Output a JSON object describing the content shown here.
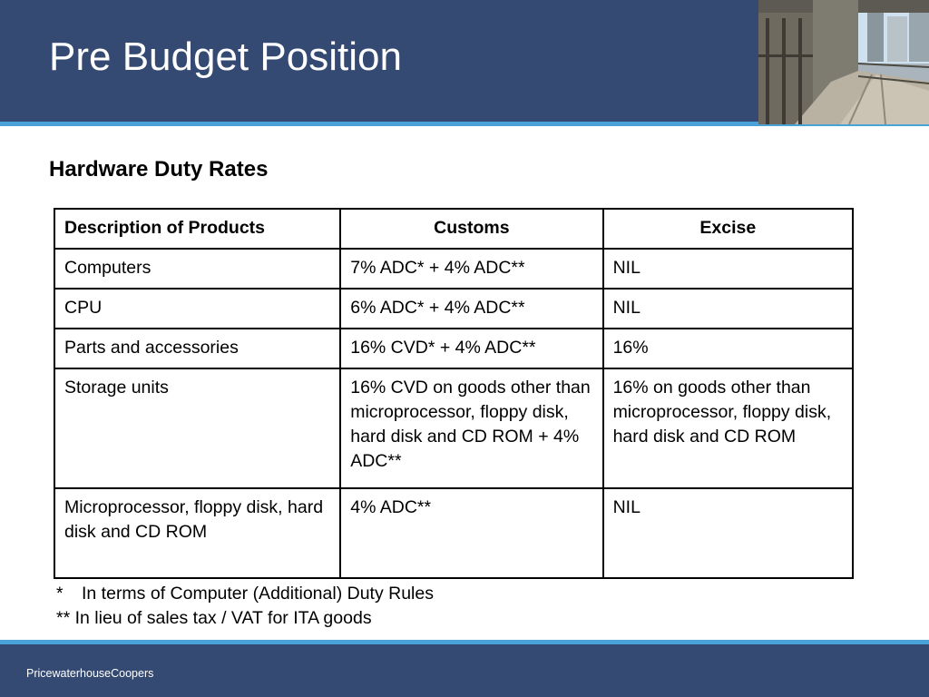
{
  "slide": {
    "title": "Pre Budget Position",
    "subtitle": "Hardware Duty Rates",
    "footer": "PricewaterhouseCoopers",
    "photo_icon": "walkway-photo",
    "colors": {
      "header_bg": "#354a72",
      "accent_rule": "#4aa3d8"
    }
  },
  "table": {
    "headers": [
      "Description of Products",
      "Customs",
      "Excise"
    ],
    "rows": [
      [
        "Computers",
        "7% ADC* + 4% ADC**",
        "NIL"
      ],
      [
        "CPU",
        "6% ADC* + 4% ADC**",
        "NIL"
      ],
      [
        "Parts and accessories",
        "16% CVD* + 4% ADC**",
        "16%"
      ],
      [
        "Storage units",
        "16% CVD on goods other than microprocessor, floppy disk, hard disk and CD ROM + 4% ADC**",
        "16% on goods other than microprocessor, floppy disk, hard disk and CD ROM"
      ],
      [
        "Microprocessor, floppy disk, hard disk and CD ROM",
        "4% ADC**",
        "NIL"
      ]
    ]
  },
  "footnotes": {
    "fn1_mark": "*",
    "fn1_text": "In terms of Computer (Additional) Duty Rules",
    "fn2": "** In lieu of sales tax / VAT for ITA goods"
  }
}
